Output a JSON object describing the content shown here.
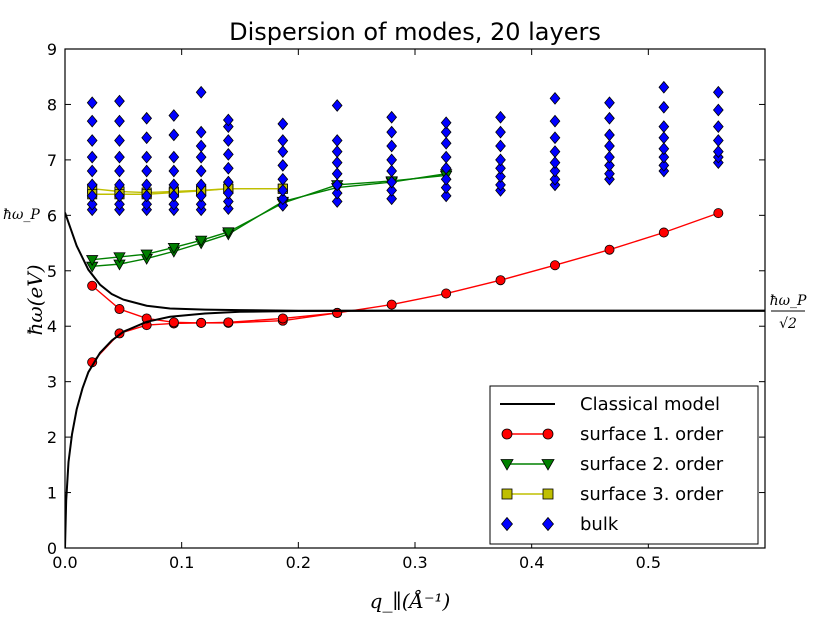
{
  "chart_data": {
    "type": "line",
    "title": "Dispersion of modes, 20 layers",
    "xlabel": "q_∥(Å⁻¹)",
    "ylabel": "ħω(eV)",
    "xlim": [
      0.0,
      0.6
    ],
    "ylim": [
      0,
      9
    ],
    "xticks": [
      "0.0",
      "0.1",
      "0.2",
      "0.3",
      "0.4",
      "0.5"
    ],
    "yticks": [
      "0",
      "1",
      "2",
      "3",
      "4",
      "5",
      "6",
      "7",
      "8",
      "9"
    ],
    "annotations": {
      "left": "ħω_P",
      "right_num": "ħω_P",
      "right_den": "√2"
    },
    "reference_levels": {
      "omega_p": 6.05,
      "omega_p_over_sqrt2": 4.28
    },
    "legend": [
      {
        "label": "Classical model",
        "kind": "line",
        "color": "#000000"
      },
      {
        "label": "surface 1. order",
        "kind": "circle",
        "color": "#ff0000"
      },
      {
        "label": "surface 2. order",
        "kind": "triangle",
        "color": "#008000"
      },
      {
        "label": "surface 3. order",
        "kind": "square",
        "color": "#bfbf00"
      },
      {
        "label": "bulk",
        "kind": "diamond",
        "color": "#0000ff"
      }
    ],
    "series": [
      {
        "name": "surface 1. order",
        "marker": "circle",
        "color": "#ff0000",
        "lines": [
          {
            "x": [
              0.0233,
              0.0467,
              0.07,
              0.0933,
              0.1167,
              0.14,
              0.1867,
              0.2333,
              0.28,
              0.3267,
              0.3733,
              0.42,
              0.4667,
              0.5133,
              0.56
            ],
            "y": [
              3.35,
              3.87,
              4.02,
              4.05,
              4.06,
              4.06,
              4.1,
              4.24,
              4.39,
              4.59,
              4.83,
              5.1,
              5.38,
              5.69,
              6.04
            ]
          },
          {
            "x": [
              0.0233,
              0.0467,
              0.07,
              0.0933,
              0.1167,
              0.14,
              0.1867,
              0.2333
            ],
            "y": [
              4.73,
              4.31,
              4.14,
              4.07,
              4.06,
              4.07,
              4.14,
              4.24
            ]
          }
        ]
      },
      {
        "name": "surface 2. order",
        "marker": "triangle",
        "color": "#008000",
        "lines": [
          {
            "x": [
              0.0233,
              0.0467,
              0.07,
              0.0933,
              0.1167,
              0.14,
              0.1867,
              0.2333,
              0.28,
              0.3267
            ],
            "y": [
              5.08,
              5.12,
              5.22,
              5.35,
              5.5,
              5.66,
              6.25,
              6.5,
              6.6,
              6.75
            ]
          },
          {
            "x": [
              0.0233,
              0.0467,
              0.07,
              0.0933,
              0.1167,
              0.14,
              0.1867,
              0.2333,
              0.28,
              0.3267
            ],
            "y": [
              5.2,
              5.25,
              5.3,
              5.42,
              5.55,
              5.7,
              6.22,
              6.55,
              6.62,
              6.72
            ]
          }
        ]
      },
      {
        "name": "surface 3. order",
        "marker": "square",
        "color": "#bfbf00",
        "lines": [
          {
            "x": [
              0.0233,
              0.0467,
              0.07,
              0.0933,
              0.1167,
              0.14,
              0.1867
            ],
            "y": [
              6.48,
              6.43,
              6.41,
              6.43,
              6.45,
              6.48,
              6.48
            ]
          },
          {
            "x": [
              0.0233,
              0.0467,
              0.07,
              0.0933,
              0.1167,
              0.14,
              0.1867
            ],
            "y": [
              6.38,
              6.38,
              6.38,
              6.41,
              6.44,
              6.48,
              6.48
            ]
          }
        ]
      },
      {
        "name": "bulk",
        "marker": "diamond",
        "color": "#0000ff",
        "columns": [
          {
            "x": 0.0233,
            "y": [
              6.1,
              6.2,
              6.35,
              6.55,
              6.8,
              7.05,
              7.35,
              7.7,
              8.03
            ]
          },
          {
            "x": 0.0467,
            "y": [
              6.1,
              6.2,
              6.35,
              6.55,
              6.8,
              7.05,
              7.35,
              7.7,
              8.06
            ]
          },
          {
            "x": 0.07,
            "y": [
              6.1,
              6.2,
              6.35,
              6.55,
              6.8,
              7.05,
              7.4,
              7.75
            ]
          },
          {
            "x": 0.0933,
            "y": [
              6.1,
              6.2,
              6.35,
              6.55,
              6.8,
              7.05,
              7.45,
              7.8
            ]
          },
          {
            "x": 0.1167,
            "y": [
              6.1,
              6.2,
              6.35,
              6.55,
              6.8,
              7.05,
              7.25,
              7.5,
              8.22
            ]
          },
          {
            "x": 0.14,
            "y": [
              6.12,
              6.25,
              6.4,
              6.6,
              6.85,
              7.1,
              7.35,
              7.6,
              7.72
            ]
          },
          {
            "x": 0.1867,
            "y": [
              6.18,
              6.3,
              6.45,
              6.65,
              6.9,
              7.15,
              7.35,
              7.65
            ]
          },
          {
            "x": 0.2333,
            "y": [
              6.25,
              6.4,
              6.55,
              6.75,
              6.95,
              7.15,
              7.35,
              7.98
            ]
          },
          {
            "x": 0.28,
            "y": [
              6.3,
              6.45,
              6.6,
              6.8,
              7.0,
              7.25,
              7.5,
              7.77
            ]
          },
          {
            "x": 0.3267,
            "y": [
              6.35,
              6.5,
              6.65,
              6.85,
              7.05,
              7.3,
              7.5,
              7.67
            ]
          },
          {
            "x": 0.3733,
            "y": [
              6.45,
              6.55,
              6.7,
              6.85,
              7.0,
              7.25,
              7.5,
              7.77
            ]
          },
          {
            "x": 0.42,
            "y": [
              6.55,
              6.65,
              6.8,
              6.95,
              7.15,
              7.4,
              7.7,
              8.11
            ]
          },
          {
            "x": 0.4667,
            "y": [
              6.65,
              6.75,
              6.9,
              7.05,
              7.25,
              7.45,
              7.75,
              8.03
            ]
          },
          {
            "x": 0.5133,
            "y": [
              6.8,
              6.9,
              7.05,
              7.2,
              7.4,
              7.6,
              7.95,
              8.31
            ]
          },
          {
            "x": 0.56,
            "y": [
              6.95,
              7.05,
              7.15,
              7.35,
              7.6,
              7.9,
              8.22
            ]
          }
        ]
      },
      {
        "name": "Classical model",
        "marker": "none",
        "color": "#000000",
        "curves": [
          {
            "x": [
              0.0,
              0.001,
              0.003,
              0.006,
              0.01,
              0.015,
              0.02,
              0.03,
              0.04,
              0.05,
              0.07,
              0.09,
              0.12,
              0.15,
              0.2,
              0.3,
              0.4,
              0.5,
              0.6
            ],
            "y": [
              0.0,
              0.85,
              1.55,
              2.05,
              2.5,
              2.88,
              3.17,
              3.52,
              3.74,
              3.9,
              4.08,
              4.17,
              4.23,
              4.26,
              4.275,
              4.28,
              4.28,
              4.28,
              4.28
            ]
          },
          {
            "x": [
              0.0,
              0.005,
              0.01,
              0.02,
              0.03,
              0.04,
              0.05,
              0.07,
              0.09,
              0.12,
              0.15,
              0.2,
              0.3,
              0.4,
              0.5,
              0.6
            ],
            "y": [
              6.05,
              5.75,
              5.45,
              5.02,
              4.75,
              4.58,
              4.48,
              4.37,
              4.32,
              4.3,
              4.29,
              4.28,
              4.28,
              4.28,
              4.28,
              4.28
            ]
          }
        ]
      }
    ]
  }
}
